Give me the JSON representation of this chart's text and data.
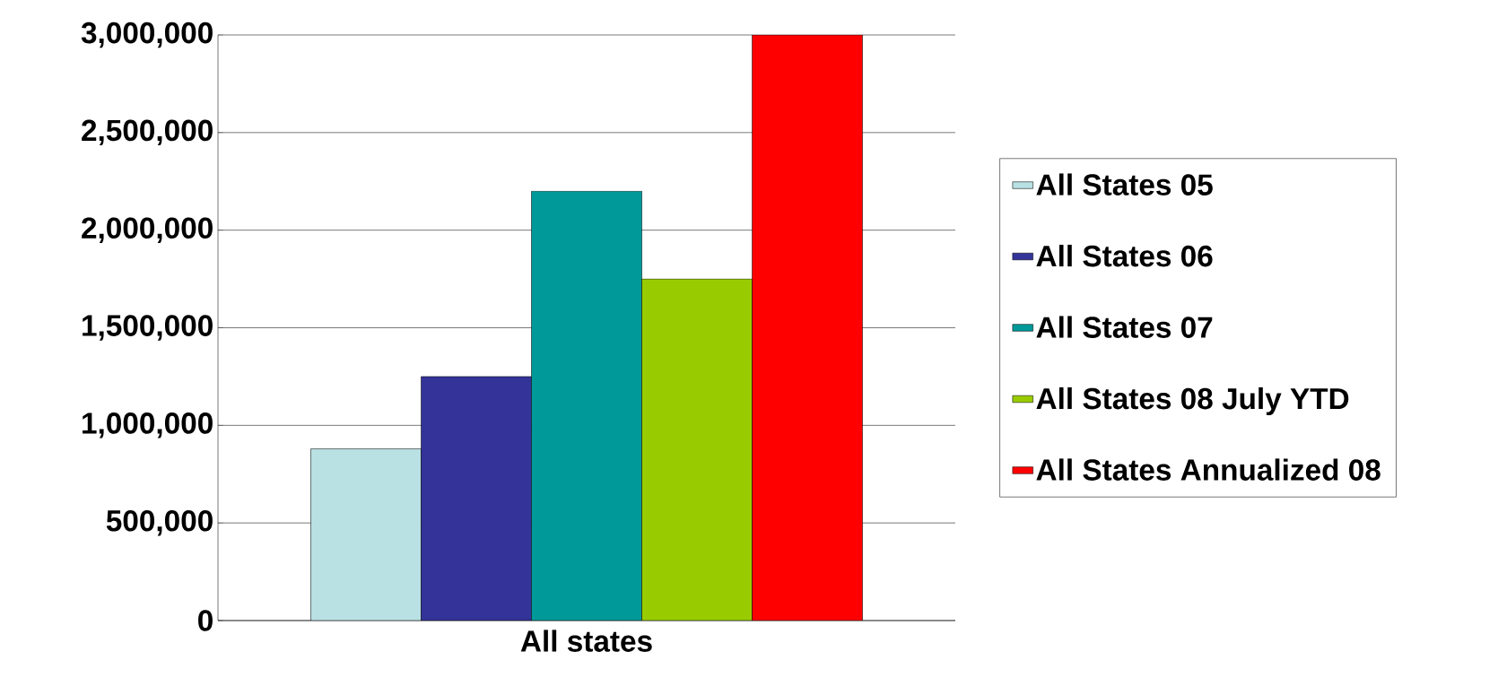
{
  "chart_data": {
    "type": "bar",
    "categories": [
      "All states"
    ],
    "series": [
      {
        "name": "All States 05",
        "color": "#b9e0e3",
        "values": [
          880000
        ]
      },
      {
        "name": "All States 06",
        "color": "#333399",
        "values": [
          1250000
        ]
      },
      {
        "name": "All States 07",
        "color": "#009999",
        "values": [
          2200000
        ]
      },
      {
        "name": "All States 08 July YTD",
        "color": "#99cc00",
        "values": [
          1750000
        ]
      },
      {
        "name": "All States Annualized 08",
        "color": "#ff0000",
        "values": [
          3000000
        ]
      }
    ],
    "ylim": [
      0,
      3000000
    ],
    "yticks": [
      {
        "value": 0,
        "label": "0"
      },
      {
        "value": 500000,
        "label": "500,000"
      },
      {
        "value": 1000000,
        "label": "1,000,000"
      },
      {
        "value": 1500000,
        "label": "1,500,000"
      },
      {
        "value": 2000000,
        "label": "2,000,000"
      },
      {
        "value": 2500000,
        "label": "2,500,000"
      },
      {
        "value": 3000000,
        "label": "3,000,000"
      }
    ],
    "grid": "y",
    "legend": "right"
  }
}
